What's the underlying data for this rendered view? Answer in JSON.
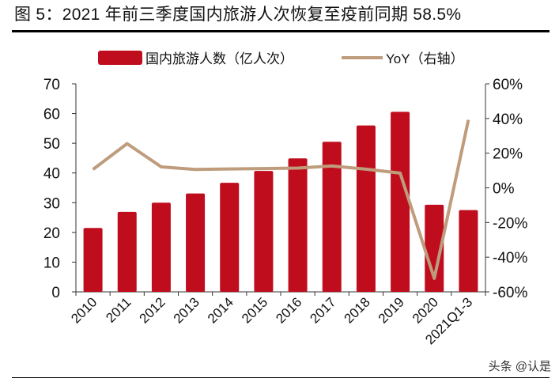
{
  "header": {
    "title": "图 5：2021 年前三季度国内旅游人次恢复至疫前同期 58.5%",
    "watermark": "头条 @认是"
  },
  "chart_data": {
    "type": "bar+line",
    "title": "",
    "categories": [
      "2010",
      "2011",
      "2012",
      "2013",
      "2014",
      "2015",
      "2016",
      "2017",
      "2018",
      "2019",
      "2020",
      "2021Q1-3"
    ],
    "series": [
      {
        "name": "国内旅游人数（亿人次）",
        "type": "bar",
        "axis": "left",
        "color": "#C00D1E",
        "values": [
          21.5,
          26.9,
          30.0,
          33.1,
          36.7,
          40.7,
          44.9,
          50.5,
          56.0,
          60.6,
          29.3,
          27.5
        ]
      },
      {
        "name": "YoY（右轴）",
        "type": "line",
        "axis": "right",
        "color": "#BE9C7C",
        "values": [
          10.6,
          25.5,
          12.1,
          10.6,
          10.9,
          11.1,
          11.4,
          12.6,
          10.8,
          8.5,
          -52.2,
          39.2
        ]
      }
    ],
    "left_axis": {
      "range": [
        0,
        70
      ],
      "ticks": [
        "0",
        "10",
        "20",
        "30",
        "40",
        "50",
        "60",
        "70"
      ]
    },
    "right_axis": {
      "range": [
        -60,
        60
      ],
      "unit": "%",
      "ticks": [
        "-60%",
        "-40%",
        "-20%",
        "0%",
        "20%",
        "40%",
        "60%"
      ]
    },
    "grid": false,
    "legend": "top"
  }
}
